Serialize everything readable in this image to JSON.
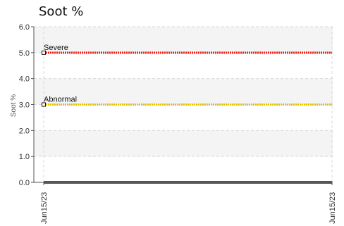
{
  "chart_data": {
    "type": "line",
    "title": "Soot %",
    "xlabel": "",
    "ylabel": "Soot %",
    "x_ticks": [
      "Jun15/23",
      "Jun15/23"
    ],
    "ylim": [
      0,
      6
    ],
    "yticks": [
      "0.0",
      "1.0",
      "2.0",
      "3.0",
      "4.0",
      "5.0",
      "6.0"
    ],
    "grid": true,
    "series": [
      {
        "values": [
          0,
          0
        ],
        "color": "#555555"
      }
    ],
    "thresholds": [
      {
        "name": "Severe",
        "value": 5.0,
        "color": "#e8261f"
      },
      {
        "name": "Abnormal",
        "value": 3.0,
        "color": "#e8c400"
      }
    ]
  }
}
